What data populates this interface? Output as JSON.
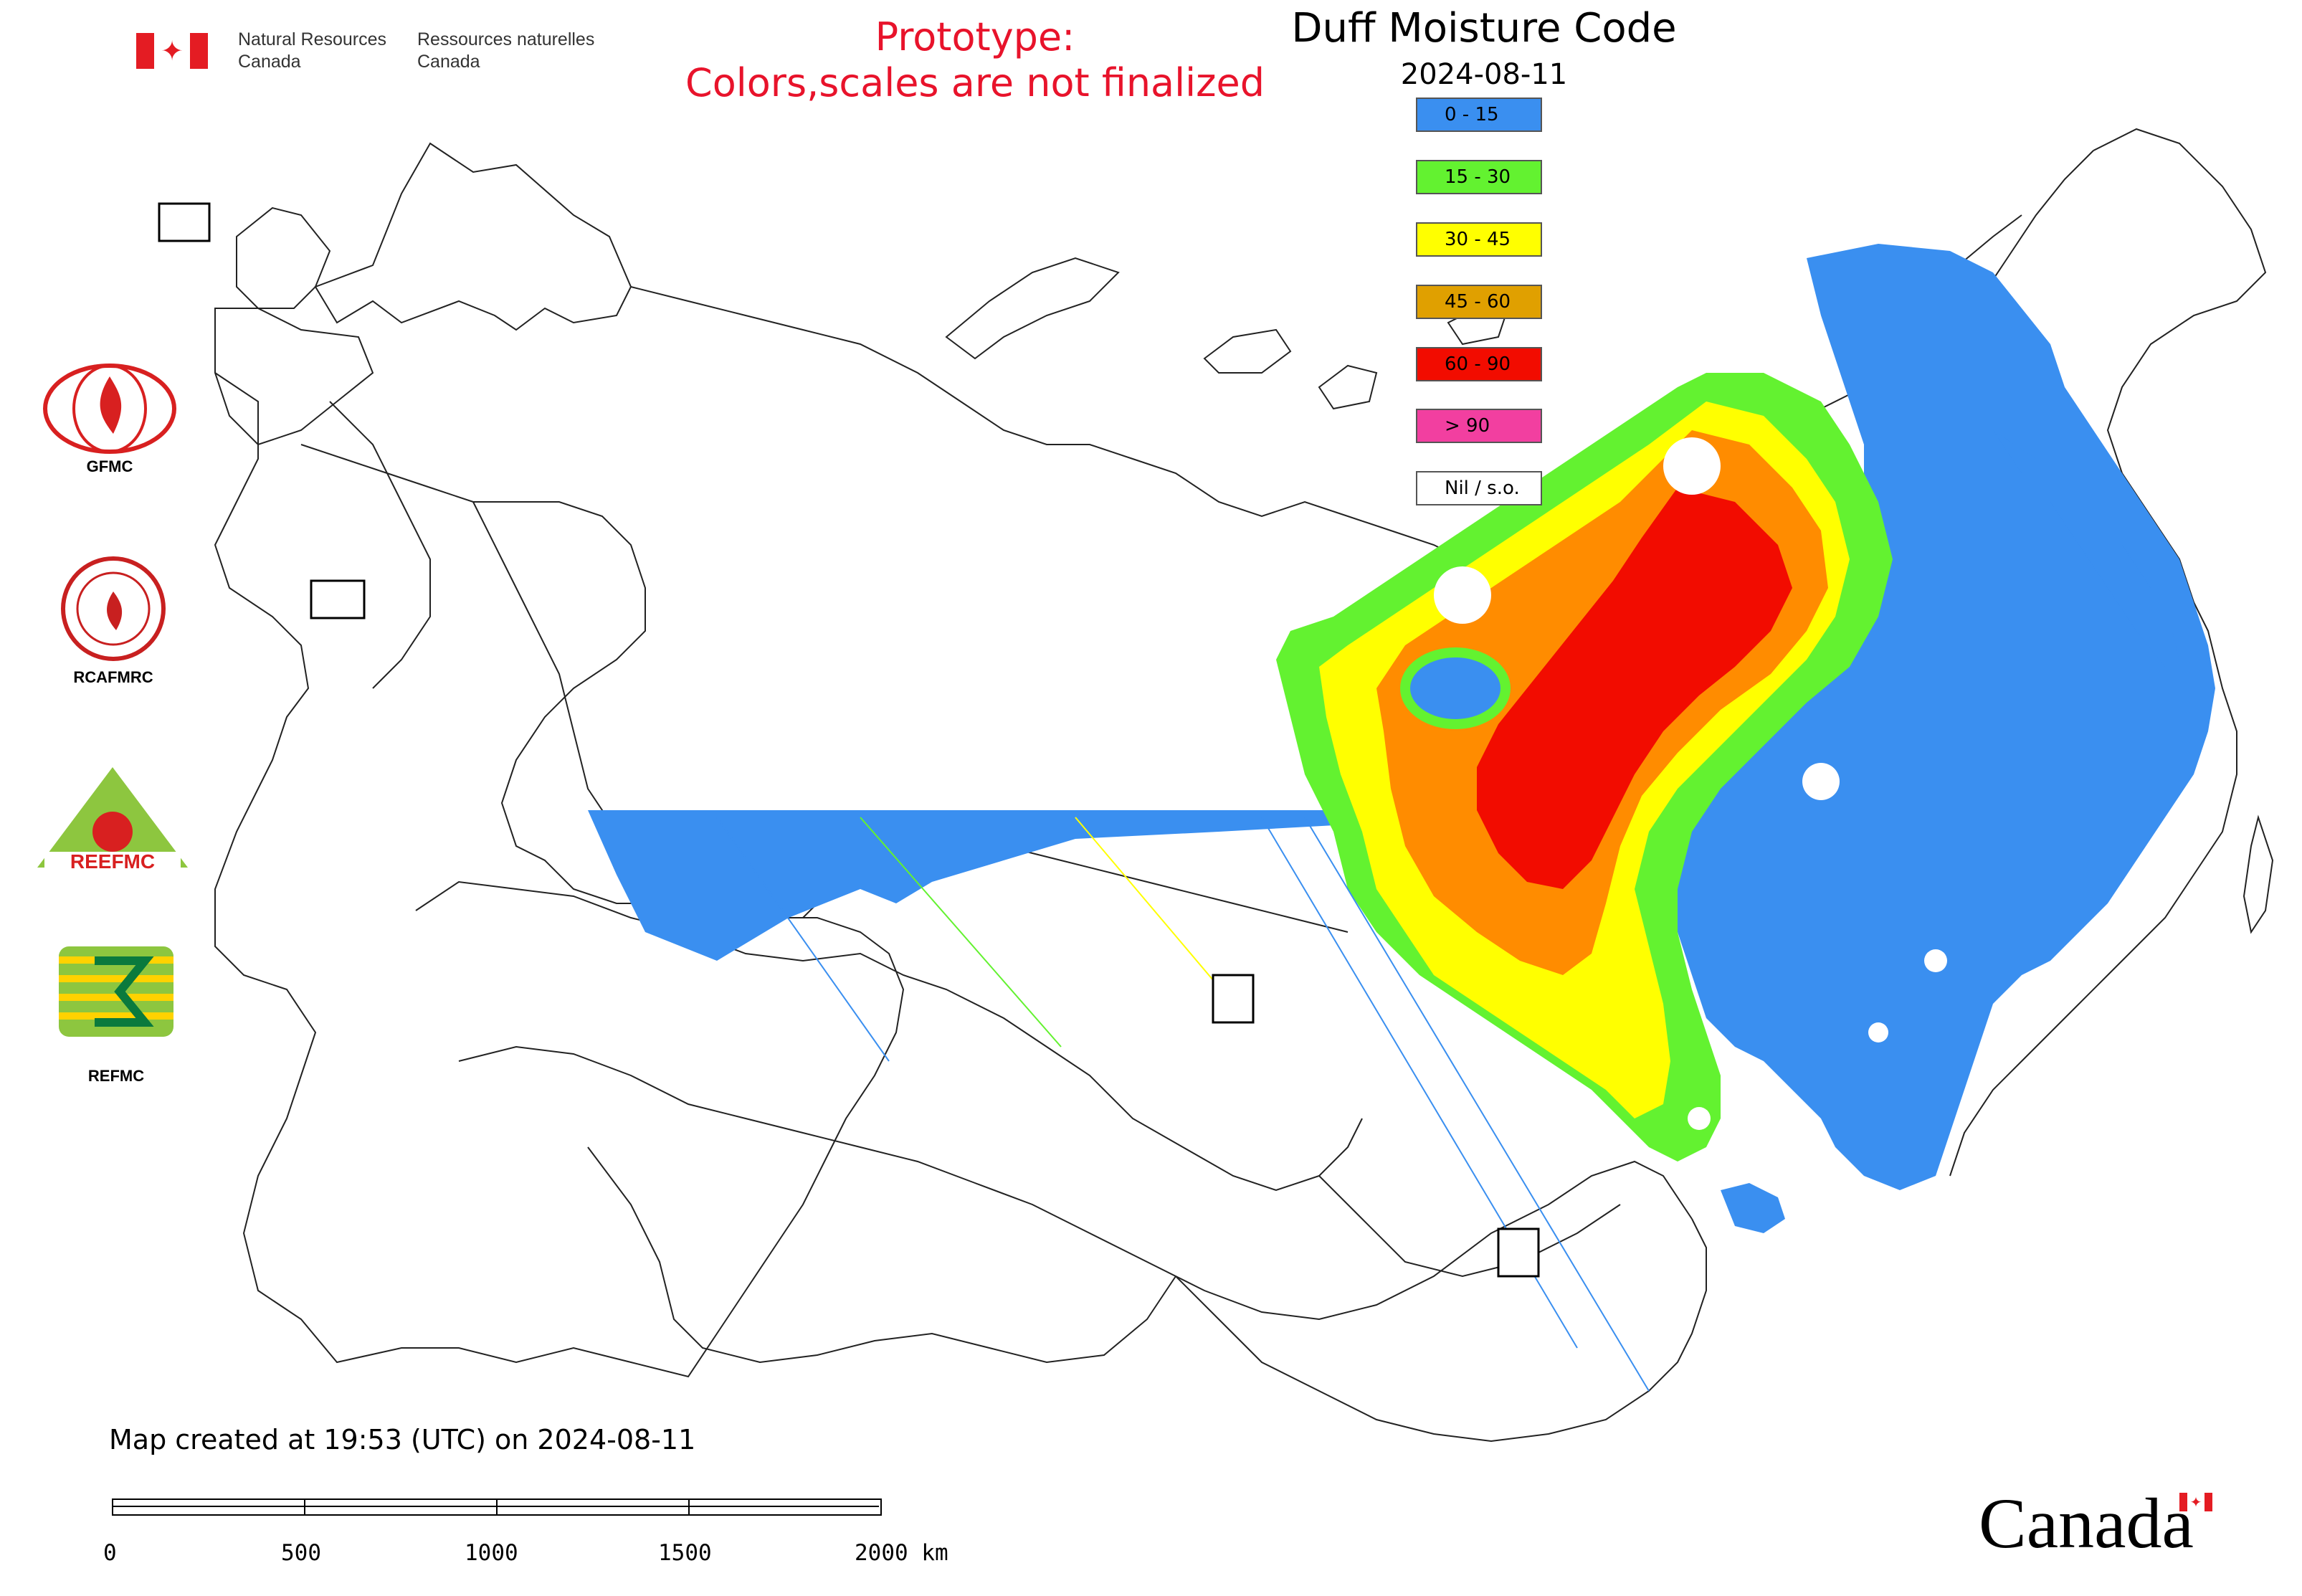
{
  "header": {
    "department_en_line1": "Natural Resources",
    "department_en_line2": "Canada",
    "department_fr_line1": "Ressources naturelles",
    "department_fr_line2": "Canada",
    "flag_symbol": "maple-leaf-icon",
    "prototype_line1": "Prototype:",
    "prototype_line2": "Colors,scales are not finalized"
  },
  "map": {
    "title": "Duff Moisture Code",
    "date": "2024-08-11",
    "created_note": "Map created at 19:53 (UTC) on 2024-08-11",
    "legend": [
      {
        "label": "0 - 15",
        "color": "#3a8ff0"
      },
      {
        "label": "15 - 30",
        "color": "#63f230"
      },
      {
        "label": "30 - 45",
        "color": "#ffff00"
      },
      {
        "label": "45 - 60",
        "color": "#e0a000"
      },
      {
        "label": "60 - 90",
        "color": "#f20c00"
      },
      {
        "label": "> 90",
        "color": "#f23fa0"
      },
      {
        "label": "Nil / s.o.",
        "color": "#ffffff"
      }
    ],
    "data_colors": {
      "class_0_15": "#3a8ff0",
      "class_15_30": "#63f230",
      "class_30_45": "#ffff00",
      "class_45_60_fill": "#ff8c00",
      "class_60_90": "#f20c00"
    },
    "markers": [
      "GFMC",
      "REEFMC",
      "REFMC",
      "RCAFMRC"
    ]
  },
  "logos": [
    {
      "label": "GFMC",
      "icon": "gfmc-logo"
    },
    {
      "label": "RCAFMRC",
      "icon": "rcafmrc-logo"
    },
    {
      "label": "REEFMC",
      "icon": "reefmc-logo"
    },
    {
      "label": "REFMC",
      "icon": "refmc-logo"
    }
  ],
  "scale_bar": {
    "labels": [
      "0",
      "500",
      "1000",
      "1500",
      "2000 km"
    ]
  },
  "footer": {
    "wordmark": "Canada"
  }
}
